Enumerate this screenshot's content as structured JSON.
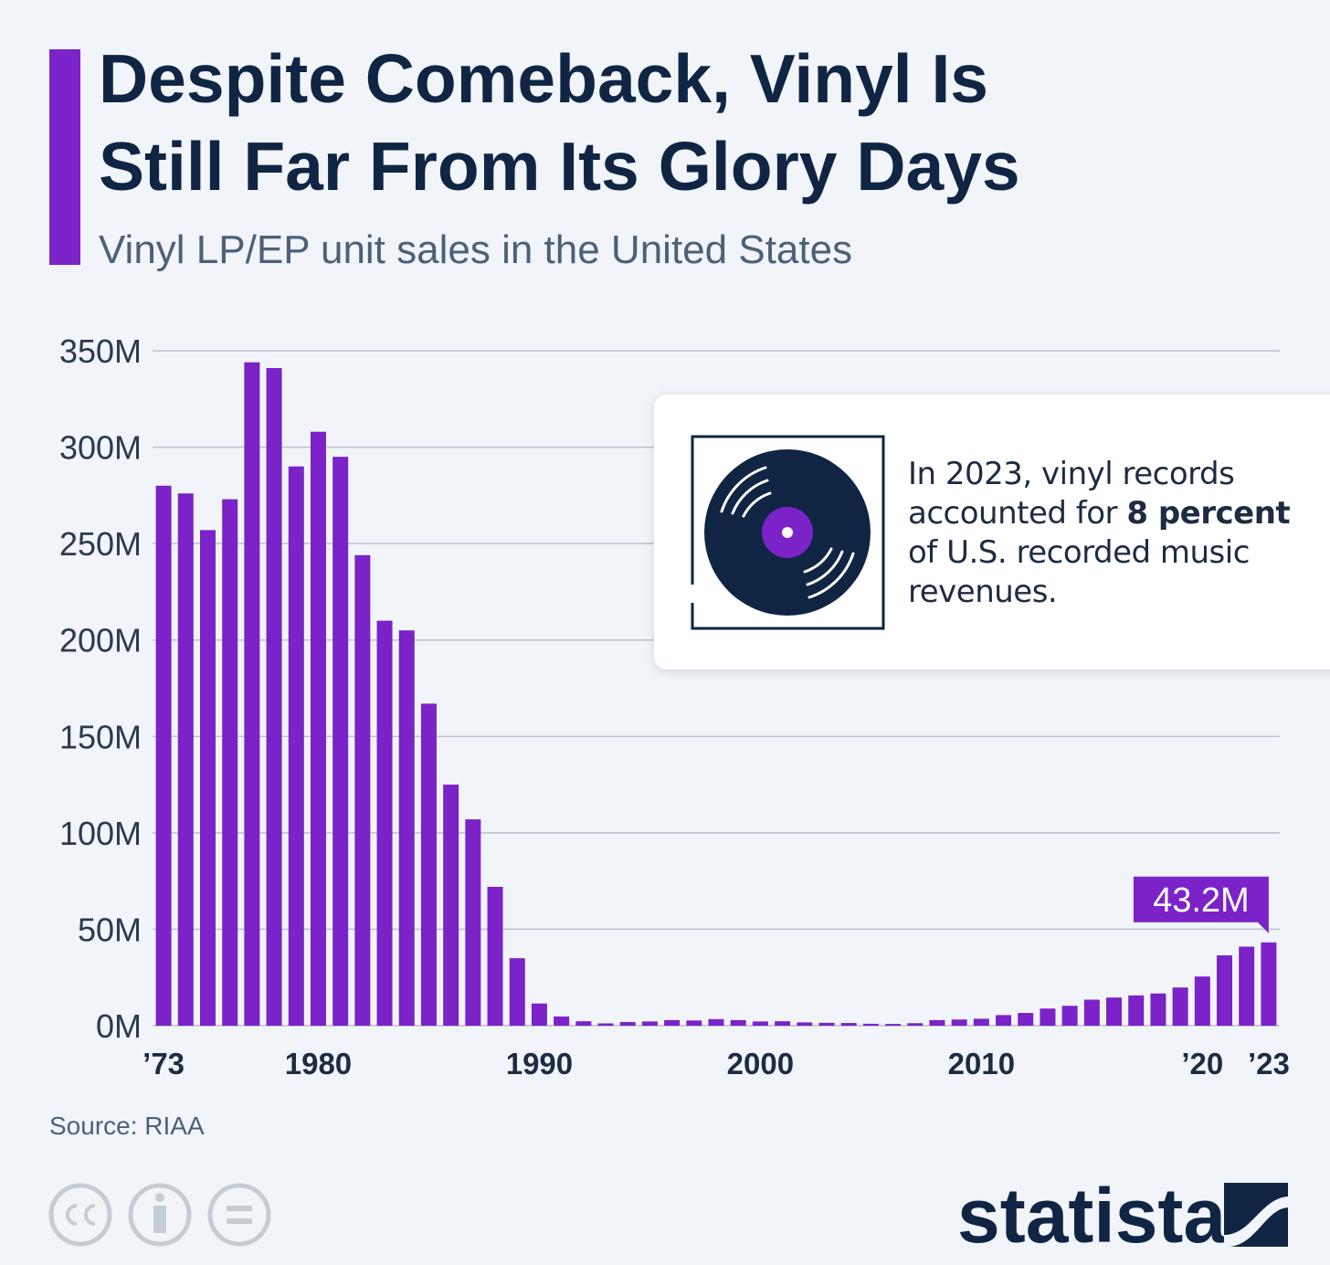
{
  "chart_data": {
    "type": "bar",
    "title": [
      "Despite Comeback, Vinyl Is",
      "Still Far From Its Glory Days"
    ],
    "subtitle": "Vinyl LP/EP unit sales in the United States",
    "categories": [
      "’73",
      null,
      null,
      null,
      null,
      null,
      null,
      "1980",
      null,
      null,
      null,
      null,
      null,
      null,
      null,
      null,
      null,
      "1990",
      null,
      null,
      null,
      null,
      null,
      null,
      null,
      null,
      null,
      "2000",
      null,
      null,
      null,
      null,
      null,
      null,
      null,
      null,
      null,
      "2010",
      null,
      null,
      null,
      null,
      null,
      null,
      null,
      null,
      null,
      "’20",
      null,
      null,
      "’23"
    ],
    "values": [
      280,
      276,
      257,
      273,
      344,
      341,
      290,
      308,
      295,
      244,
      210,
      205,
      167,
      125,
      107,
      72,
      35,
      11.5,
      4.8,
      2.3,
      1.2,
      1.9,
      2.2,
      2.9,
      2.7,
      3.4,
      2.9,
      2.2,
      2.3,
      1.7,
      1.5,
      1.4,
      1.0,
      0.9,
      1.3,
      2.9,
      3.2,
      3.6,
      5.5,
      6.6,
      8.9,
      10.3,
      13.5,
      14.6,
      15.7,
      16.7,
      19.8,
      25.5,
      36.5,
      41,
      43.2
    ],
    "value_labels": [
      null,
      null,
      null,
      null,
      null,
      null,
      null,
      null,
      null,
      null,
      null,
      null,
      null,
      null,
      null,
      null,
      null,
      null,
      null,
      null,
      null,
      null,
      null,
      null,
      null,
      null,
      null,
      null,
      null,
      null,
      null,
      null,
      null,
      null,
      null,
      null,
      null,
      null,
      null,
      null,
      null,
      null,
      null,
      null,
      null,
      null,
      null,
      null,
      null,
      null,
      "43.2M"
    ],
    "color": "#7b22c8",
    "ylim": [
      0,
      350
    ],
    "yticks": [
      {
        "value": 0,
        "label": "0M"
      },
      {
        "value": 50,
        "label": "50M"
      },
      {
        "value": 100,
        "label": "100M"
      },
      {
        "value": 150,
        "label": "150M"
      },
      {
        "value": 200,
        "label": "200M"
      },
      {
        "value": 250,
        "label": "250M"
      },
      {
        "value": 300,
        "label": "300M"
      },
      {
        "value": 350,
        "label": "350M"
      }
    ],
    "grid": true,
    "annotation": [
      "In 2023, vinyl records accounted for ",
      "8 percent",
      " of U.S. recorded music revenues."
    ],
    "source": "Source: RIAA",
    "logo": "statista"
  }
}
